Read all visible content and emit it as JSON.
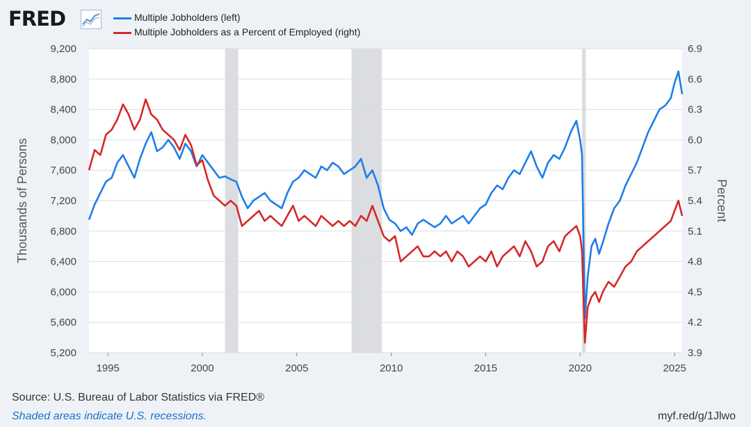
{
  "header": {
    "logo_text": "FRED",
    "logo_icon": "trend-line-icon"
  },
  "footer": {
    "source": "Source: U.S. Bureau of Labor Statistics via FRED®",
    "note": "Shaded areas indicate U.S. recessions.",
    "url": "myf.red/g/1Jlwo"
  },
  "colors": {
    "left_series": "#1e7ee8",
    "right_series": "#d62728",
    "recession": "#dcdde0",
    "background": "#eef2f6",
    "grid": "#d8dde3"
  },
  "chart_data": {
    "type": "line",
    "xlabel": "",
    "x_ticks": [
      "1995",
      "2000",
      "2005",
      "2010",
      "2015",
      "2020",
      "2025"
    ],
    "x_tick_values": [
      1995,
      2000,
      2005,
      2010,
      2015,
      2020,
      2025
    ],
    "xlim": [
      1994.0,
      2025.4
    ],
    "y_left": {
      "label": "Thousands of Persons",
      "ticks": [
        "5,200",
        "5,600",
        "6,000",
        "6,400",
        "6,800",
        "7,200",
        "7,600",
        "8,000",
        "8,400",
        "8,800",
        "9,200"
      ],
      "tick_values": [
        5200,
        5600,
        6000,
        6400,
        6800,
        7200,
        7600,
        8000,
        8400,
        8800,
        9200
      ],
      "lim": [
        5200,
        9200
      ]
    },
    "y_right": {
      "label": "Percent",
      "ticks": [
        "3.9",
        "4.2",
        "4.5",
        "4.8",
        "5.1",
        "5.4",
        "5.7",
        "6.0",
        "6.3",
        "6.6",
        "6.9"
      ],
      "tick_values": [
        3.9,
        4.2,
        4.5,
        4.8,
        5.1,
        5.4,
        5.7,
        6.0,
        6.3,
        6.6,
        6.9
      ],
      "lim": [
        3.9,
        6.9
      ]
    },
    "recessions": [
      [
        2001.2,
        2001.9
      ],
      [
        2007.9,
        2009.5
      ],
      [
        2020.1,
        2020.3
      ]
    ],
    "grid": true,
    "legend_placement": "top-left",
    "series": [
      {
        "name": "Multiple Jobholders (left)",
        "axis": "left",
        "color": "#1e7ee8",
        "points": [
          [
            1994.0,
            6950
          ],
          [
            1994.3,
            7150
          ],
          [
            1994.6,
            7300
          ],
          [
            1994.9,
            7450
          ],
          [
            1995.2,
            7500
          ],
          [
            1995.5,
            7700
          ],
          [
            1995.8,
            7800
          ],
          [
            1996.1,
            7650
          ],
          [
            1996.4,
            7500
          ],
          [
            1996.7,
            7750
          ],
          [
            1997.0,
            7950
          ],
          [
            1997.3,
            8100
          ],
          [
            1997.6,
            7850
          ],
          [
            1997.9,
            7900
          ],
          [
            1998.2,
            8000
          ],
          [
            1998.5,
            7900
          ],
          [
            1998.8,
            7750
          ],
          [
            1999.1,
            7950
          ],
          [
            1999.4,
            7850
          ],
          [
            1999.7,
            7650
          ],
          [
            2000.0,
            7800
          ],
          [
            2000.3,
            7700
          ],
          [
            2000.6,
            7600
          ],
          [
            2000.9,
            7500
          ],
          [
            2001.2,
            7520
          ],
          [
            2001.5,
            7480
          ],
          [
            2001.8,
            7450
          ],
          [
            2002.1,
            7250
          ],
          [
            2002.4,
            7100
          ],
          [
            2002.7,
            7200
          ],
          [
            2003.0,
            7250
          ],
          [
            2003.3,
            7300
          ],
          [
            2003.6,
            7200
          ],
          [
            2003.9,
            7150
          ],
          [
            2004.2,
            7100
          ],
          [
            2004.5,
            7300
          ],
          [
            2004.8,
            7450
          ],
          [
            2005.1,
            7500
          ],
          [
            2005.4,
            7600
          ],
          [
            2005.7,
            7550
          ],
          [
            2006.0,
            7500
          ],
          [
            2006.3,
            7650
          ],
          [
            2006.6,
            7600
          ],
          [
            2006.9,
            7700
          ],
          [
            2007.2,
            7650
          ],
          [
            2007.5,
            7550
          ],
          [
            2007.8,
            7600
          ],
          [
            2008.1,
            7650
          ],
          [
            2008.4,
            7750
          ],
          [
            2008.7,
            7500
          ],
          [
            2009.0,
            7600
          ],
          [
            2009.3,
            7400
          ],
          [
            2009.6,
            7100
          ],
          [
            2009.9,
            6950
          ],
          [
            2010.2,
            6900
          ],
          [
            2010.5,
            6800
          ],
          [
            2010.8,
            6850
          ],
          [
            2011.1,
            6750
          ],
          [
            2011.4,
            6900
          ],
          [
            2011.7,
            6950
          ],
          [
            2012.0,
            6900
          ],
          [
            2012.3,
            6850
          ],
          [
            2012.6,
            6900
          ],
          [
            2012.9,
            7000
          ],
          [
            2013.2,
            6900
          ],
          [
            2013.5,
            6950
          ],
          [
            2013.8,
            7000
          ],
          [
            2014.1,
            6900
          ],
          [
            2014.4,
            7000
          ],
          [
            2014.7,
            7100
          ],
          [
            2015.0,
            7150
          ],
          [
            2015.3,
            7300
          ],
          [
            2015.6,
            7400
          ],
          [
            2015.9,
            7350
          ],
          [
            2016.2,
            7500
          ],
          [
            2016.5,
            7600
          ],
          [
            2016.8,
            7550
          ],
          [
            2017.1,
            7700
          ],
          [
            2017.4,
            7850
          ],
          [
            2017.7,
            7650
          ],
          [
            2018.0,
            7500
          ],
          [
            2018.3,
            7700
          ],
          [
            2018.6,
            7800
          ],
          [
            2018.9,
            7750
          ],
          [
            2019.2,
            7900
          ],
          [
            2019.5,
            8100
          ],
          [
            2019.8,
            8250
          ],
          [
            2020.0,
            8000
          ],
          [
            2020.1,
            7800
          ],
          [
            2020.25,
            5650
          ],
          [
            2020.4,
            6200
          ],
          [
            2020.6,
            6600
          ],
          [
            2020.8,
            6700
          ],
          [
            2021.0,
            6500
          ],
          [
            2021.2,
            6650
          ],
          [
            2021.5,
            6900
          ],
          [
            2021.8,
            7100
          ],
          [
            2022.1,
            7200
          ],
          [
            2022.4,
            7400
          ],
          [
            2022.7,
            7550
          ],
          [
            2023.0,
            7700
          ],
          [
            2023.3,
            7900
          ],
          [
            2023.6,
            8100
          ],
          [
            2023.9,
            8250
          ],
          [
            2024.2,
            8400
          ],
          [
            2024.5,
            8450
          ],
          [
            2024.8,
            8550
          ],
          [
            2025.0,
            8750
          ],
          [
            2025.2,
            8900
          ],
          [
            2025.4,
            8600
          ]
        ]
      },
      {
        "name": "Multiple Jobholders as a Percent of Employed (right)",
        "axis": "right",
        "color": "#d62728",
        "points": [
          [
            1994.0,
            5.7
          ],
          [
            1994.3,
            5.9
          ],
          [
            1994.6,
            5.85
          ],
          [
            1994.9,
            6.05
          ],
          [
            1995.2,
            6.1
          ],
          [
            1995.5,
            6.2
          ],
          [
            1995.8,
            6.35
          ],
          [
            1996.1,
            6.25
          ],
          [
            1996.4,
            6.1
          ],
          [
            1996.7,
            6.2
          ],
          [
            1997.0,
            6.4
          ],
          [
            1997.3,
            6.25
          ],
          [
            1997.6,
            6.2
          ],
          [
            1997.9,
            6.1
          ],
          [
            1998.2,
            6.05
          ],
          [
            1998.5,
            6.0
          ],
          [
            1998.8,
            5.9
          ],
          [
            1999.1,
            6.05
          ],
          [
            1999.4,
            5.95
          ],
          [
            1999.7,
            5.75
          ],
          [
            2000.0,
            5.8
          ],
          [
            2000.3,
            5.6
          ],
          [
            2000.6,
            5.45
          ],
          [
            2000.9,
            5.4
          ],
          [
            2001.2,
            5.35
          ],
          [
            2001.5,
            5.4
          ],
          [
            2001.8,
            5.35
          ],
          [
            2002.1,
            5.15
          ],
          [
            2002.4,
            5.2
          ],
          [
            2002.7,
            5.25
          ],
          [
            2003.0,
            5.3
          ],
          [
            2003.3,
            5.2
          ],
          [
            2003.6,
            5.25
          ],
          [
            2003.9,
            5.2
          ],
          [
            2004.2,
            5.15
          ],
          [
            2004.5,
            5.25
          ],
          [
            2004.8,
            5.35
          ],
          [
            2005.1,
            5.2
          ],
          [
            2005.4,
            5.25
          ],
          [
            2005.7,
            5.2
          ],
          [
            2006.0,
            5.15
          ],
          [
            2006.3,
            5.25
          ],
          [
            2006.6,
            5.2
          ],
          [
            2006.9,
            5.15
          ],
          [
            2007.2,
            5.2
          ],
          [
            2007.5,
            5.15
          ],
          [
            2007.8,
            5.2
          ],
          [
            2008.1,
            5.15
          ],
          [
            2008.4,
            5.25
          ],
          [
            2008.7,
            5.2
          ],
          [
            2009.0,
            5.35
          ],
          [
            2009.3,
            5.2
          ],
          [
            2009.6,
            5.05
          ],
          [
            2009.9,
            5.0
          ],
          [
            2010.2,
            5.05
          ],
          [
            2010.5,
            4.8
          ],
          [
            2010.8,
            4.85
          ],
          [
            2011.1,
            4.9
          ],
          [
            2011.4,
            4.95
          ],
          [
            2011.7,
            4.85
          ],
          [
            2012.0,
            4.85
          ],
          [
            2012.3,
            4.9
          ],
          [
            2012.6,
            4.85
          ],
          [
            2012.9,
            4.9
          ],
          [
            2013.2,
            4.8
          ],
          [
            2013.5,
            4.9
          ],
          [
            2013.8,
            4.85
          ],
          [
            2014.1,
            4.75
          ],
          [
            2014.4,
            4.8
          ],
          [
            2014.7,
            4.85
          ],
          [
            2015.0,
            4.8
          ],
          [
            2015.3,
            4.9
          ],
          [
            2015.6,
            4.75
          ],
          [
            2015.9,
            4.85
          ],
          [
            2016.2,
            4.9
          ],
          [
            2016.5,
            4.95
          ],
          [
            2016.8,
            4.85
          ],
          [
            2017.1,
            5.0
          ],
          [
            2017.4,
            4.9
          ],
          [
            2017.7,
            4.75
          ],
          [
            2018.0,
            4.8
          ],
          [
            2018.3,
            4.95
          ],
          [
            2018.6,
            5.0
          ],
          [
            2018.9,
            4.9
          ],
          [
            2019.2,
            5.05
          ],
          [
            2019.5,
            5.1
          ],
          [
            2019.8,
            5.15
          ],
          [
            2020.0,
            5.05
          ],
          [
            2020.1,
            4.9
          ],
          [
            2020.25,
            4.0
          ],
          [
            2020.4,
            4.35
          ],
          [
            2020.6,
            4.45
          ],
          [
            2020.8,
            4.5
          ],
          [
            2021.0,
            4.4
          ],
          [
            2021.2,
            4.5
          ],
          [
            2021.5,
            4.6
          ],
          [
            2021.8,
            4.55
          ],
          [
            2022.1,
            4.65
          ],
          [
            2022.4,
            4.75
          ],
          [
            2022.7,
            4.8
          ],
          [
            2023.0,
            4.9
          ],
          [
            2023.3,
            4.95
          ],
          [
            2023.6,
            5.0
          ],
          [
            2023.9,
            5.05
          ],
          [
            2024.2,
            5.1
          ],
          [
            2024.5,
            5.15
          ],
          [
            2024.8,
            5.2
          ],
          [
            2025.0,
            5.3
          ],
          [
            2025.2,
            5.4
          ],
          [
            2025.4,
            5.25
          ]
        ]
      }
    ]
  }
}
